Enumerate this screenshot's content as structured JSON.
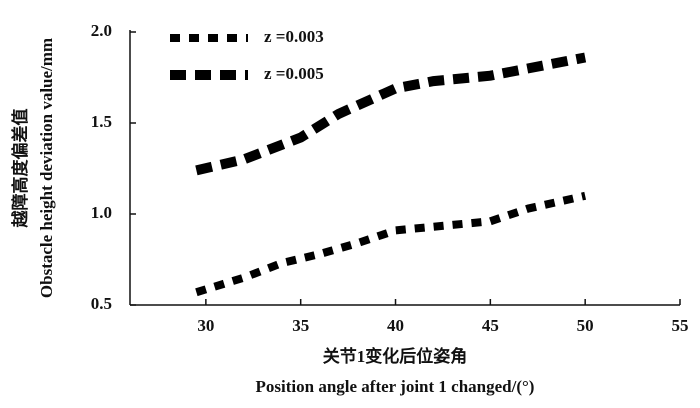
{
  "chart_data": {
    "type": "line",
    "ylabel": [
      "越障高度偏差值",
      "Obstacle height deviation value/mm"
    ],
    "xlabel": [
      "关节1变化后位姿角",
      "Position angle after joint 1 changed/(°)"
    ],
    "xlim": [
      26,
      55
    ],
    "xticks": [
      30,
      35,
      40,
      45,
      50,
      55
    ],
    "ylim": [
      0.5,
      2.0
    ],
    "yticks": [
      {
        "value": 2,
        "label": "2.0"
      },
      1.5,
      {
        "value": 1,
        "label": "1.0"
      },
      0.5
    ],
    "grid": false,
    "legend": "upper left",
    "series": [
      {
        "name": "z =0.003",
        "color": "#000000",
        "x": [
          29.5,
          32,
          34,
          36,
          38,
          40,
          42,
          45,
          47,
          50
        ],
        "values": [
          0.57,
          0.65,
          0.73,
          0.78,
          0.84,
          0.91,
          0.93,
          0.96,
          1.03,
          1.1
        ]
      },
      {
        "name": "z =0.005",
        "color": "#000000",
        "x": [
          29.5,
          32,
          34,
          35,
          37,
          40,
          42,
          45,
          47,
          50
        ],
        "values": [
          1.24,
          1.3,
          1.38,
          1.42,
          1.55,
          1.69,
          1.73,
          1.76,
          1.8,
          1.86
        ]
      }
    ]
  }
}
